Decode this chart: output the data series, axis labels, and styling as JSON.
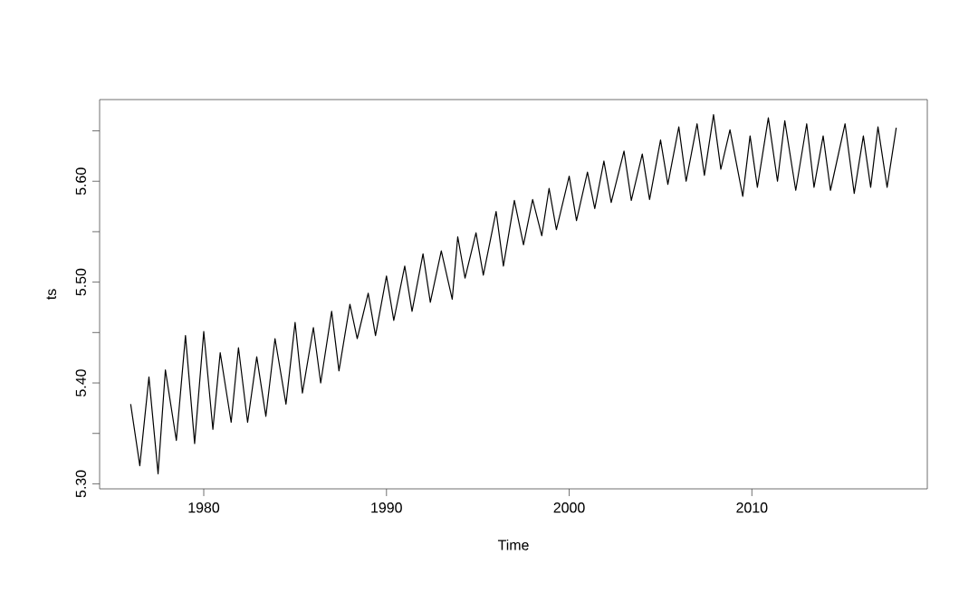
{
  "chart_data": {
    "type": "line",
    "xlabel": "Time",
    "ylabel": "ts",
    "x": [
      1976.0,
      1976.5,
      1977.0,
      1977.5,
      1977.9,
      1978.5,
      1979.0,
      1979.5,
      1980.0,
      1980.5,
      1980.9,
      1981.5,
      1981.9,
      1982.4,
      1982.9,
      1983.4,
      1983.9,
      1984.5,
      1985.0,
      1985.4,
      1986.0,
      1986.4,
      1987.0,
      1987.4,
      1988.0,
      1988.4,
      1989.0,
      1989.4,
      1990.0,
      1990.4,
      1991.0,
      1991.4,
      1992.0,
      1992.4,
      1993.0,
      1993.6,
      1993.9,
      1994.3,
      1994.9,
      1995.3,
      1996.0,
      1996.4,
      1997.0,
      1997.5,
      1998.0,
      1998.5,
      1998.9,
      1999.3,
      2000.0,
      2000.4,
      2001.0,
      2001.4,
      2001.9,
      2002.3,
      2003.0,
      2003.4,
      2004.0,
      2004.4,
      2005.0,
      2005.4,
      2006.0,
      2006.4,
      2007.0,
      2007.4,
      2007.9,
      2008.3,
      2008.8,
      2009.5,
      2009.9,
      2010.3,
      2010.9,
      2011.4,
      2011.8,
      2012.4,
      2013.0,
      2013.4,
      2013.9,
      2014.3,
      2015.1,
      2015.6,
      2016.1,
      2016.5,
      2016.9,
      2017.4,
      2017.9
    ],
    "values": [
      5.379,
      5.318,
      5.406,
      5.31,
      5.413,
      5.343,
      5.447,
      5.34,
      5.451,
      5.354,
      5.43,
      5.361,
      5.435,
      5.361,
      5.426,
      5.367,
      5.444,
      5.379,
      5.46,
      5.39,
      5.455,
      5.4,
      5.471,
      5.412,
      5.478,
      5.444,
      5.489,
      5.447,
      5.506,
      5.462,
      5.516,
      5.471,
      5.528,
      5.48,
      5.531,
      5.483,
      5.545,
      5.504,
      5.549,
      5.507,
      5.57,
      5.516,
      5.581,
      5.537,
      5.582,
      5.546,
      5.593,
      5.552,
      5.605,
      5.561,
      5.609,
      5.573,
      5.62,
      5.579,
      5.63,
      5.581,
      5.627,
      5.582,
      5.641,
      5.597,
      5.654,
      5.6,
      5.657,
      5.606,
      5.666,
      5.612,
      5.651,
      5.585,
      5.645,
      5.594,
      5.663,
      5.6,
      5.66,
      5.591,
      5.657,
      5.594,
      5.645,
      5.591,
      5.657,
      5.588,
      5.645,
      5.594,
      5.654,
      5.594,
      5.653
    ],
    "color": "#000000",
    "xlim": [
      1974.3,
      2019.6
    ],
    "ylim": [
      5.295,
      5.681
    ],
    "xticks": [
      1980,
      1990,
      2000,
      2010
    ],
    "yticks": [
      {
        "value": 5.3,
        "label": "5.30"
      },
      {
        "value": 5.35,
        "label": null
      },
      {
        "value": 5.4,
        "label": "5.40"
      },
      {
        "value": 5.45,
        "label": null
      },
      {
        "value": 5.5,
        "label": "5.50"
      },
      {
        "value": 5.55,
        "label": null
      },
      {
        "value": 5.6,
        "label": "5.60"
      },
      {
        "value": 5.65,
        "label": null
      }
    ],
    "grid": false,
    "marker": "none",
    "line_style": "solid"
  }
}
